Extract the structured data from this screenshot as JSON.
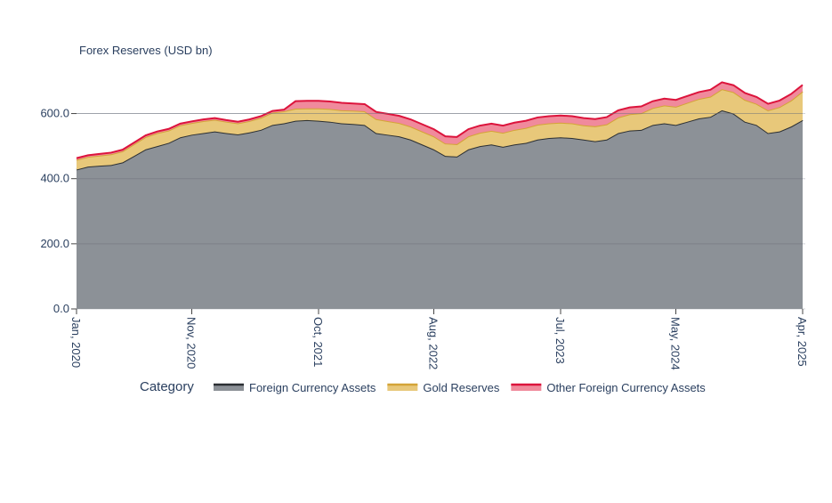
{
  "chart_data": {
    "type": "stacked_area",
    "title": "Forex Reserves (USD bn)",
    "x": [
      "2020-01",
      "2020-02",
      "2020-03",
      "2020-04",
      "2020-05",
      "2020-06",
      "2020-07",
      "2020-08",
      "2020-09",
      "2020-10",
      "2020-11",
      "2020-12",
      "2021-01",
      "2021-02",
      "2021-03",
      "2021-04",
      "2021-05",
      "2021-06",
      "2021-07",
      "2021-08",
      "2021-09",
      "2021-10",
      "2021-11",
      "2021-12",
      "2022-01",
      "2022-02",
      "2022-03",
      "2022-04",
      "2022-05",
      "2022-06",
      "2022-07",
      "2022-08",
      "2022-09",
      "2022-10",
      "2022-11",
      "2022-12",
      "2023-01",
      "2023-02",
      "2023-03",
      "2023-04",
      "2023-05",
      "2023-06",
      "2023-07",
      "2023-08",
      "2023-09",
      "2023-10",
      "2023-11",
      "2023-12",
      "2024-01",
      "2024-02",
      "2024-03",
      "2024-04",
      "2024-05",
      "2024-06",
      "2024-07",
      "2024-08",
      "2024-09",
      "2024-10",
      "2024-11",
      "2024-12",
      "2025-01",
      "2025-02",
      "2025-03",
      "2025-04"
    ],
    "series": [
      {
        "name": "Foreign Currency Assets",
        "color": "#8c9197",
        "line_color": "#2b2f33",
        "values": [
          428,
          437,
          440,
          442,
          450,
          470,
          490,
          500,
          510,
          527,
          535,
          540,
          545,
          540,
          536,
          542,
          550,
          565,
          570,
          578,
          580,
          578,
          575,
          570,
          568,
          565,
          540,
          535,
          530,
          520,
          505,
          490,
          470,
          468,
          490,
          500,
          505,
          498,
          505,
          510,
          520,
          525,
          527,
          525,
          520,
          515,
          520,
          540,
          548,
          550,
          565,
          570,
          565,
          575,
          585,
          590,
          610,
          600,
          575,
          565,
          540,
          545,
          560,
          580
        ]
      },
      {
        "name": "Gold Reserves",
        "color": "#e8c87a",
        "line_color": "#d4a437",
        "values": [
          30,
          30,
          31,
          33,
          34,
          36,
          38,
          40,
          38,
          37,
          36,
          37,
          36,
          35,
          34,
          35,
          37,
          38,
          37,
          37,
          36,
          38,
          39,
          40,
          41,
          42,
          43,
          42,
          41,
          40,
          40,
          40,
          38,
          38,
          40,
          41,
          42,
          43,
          45,
          46,
          46,
          45,
          45,
          45,
          44,
          46,
          47,
          48,
          50,
          51,
          52,
          55,
          56,
          58,
          60,
          62,
          65,
          66,
          67,
          65,
          70,
          75,
          80,
          88
        ]
      },
      {
        "name": "Other Foreign Currency Assets",
        "color": "#f08a9c",
        "line_color": "#dc143c",
        "values": [
          5,
          5,
          5,
          5,
          5,
          5,
          5,
          5,
          5,
          5,
          5,
          5,
          5,
          5,
          5,
          5,
          5,
          5,
          5,
          23,
          23,
          23,
          23,
          23,
          22,
          22,
          22,
          22,
          22,
          22,
          22,
          22,
          22,
          22,
          22,
          22,
          22,
          22,
          22,
          22,
          22,
          22,
          22,
          22,
          22,
          22,
          22,
          22,
          21,
          21,
          21,
          21,
          21,
          21,
          21,
          21,
          21,
          21,
          21,
          21,
          20,
          20,
          20,
          20
        ]
      }
    ],
    "xlim": [
      "2020-01",
      "2025-04"
    ],
    "xticks": [
      {
        "value": "2020-01",
        "label": "Jan, 2020"
      },
      {
        "value": "2020-11",
        "label": "Nov, 2020"
      },
      {
        "value": "2021-10",
        "label": "Oct, 2021"
      },
      {
        "value": "2022-08",
        "label": "Aug, 2022"
      },
      {
        "value": "2023-07",
        "label": "Jul, 2023"
      },
      {
        "value": "2024-05",
        "label": "May, 2024"
      },
      {
        "value": "2025-04",
        "label": "Apr, 2025"
      }
    ],
    "ylim": [
      0,
      730
    ],
    "yticks": [
      {
        "value": 0,
        "label": "0.0"
      },
      {
        "value": 200,
        "label": "200.0"
      },
      {
        "value": 400,
        "label": "400.0"
      },
      {
        "value": 600,
        "label": "600.0"
      }
    ],
    "grid": true,
    "legend_title": "Category",
    "legend": "bottom"
  }
}
